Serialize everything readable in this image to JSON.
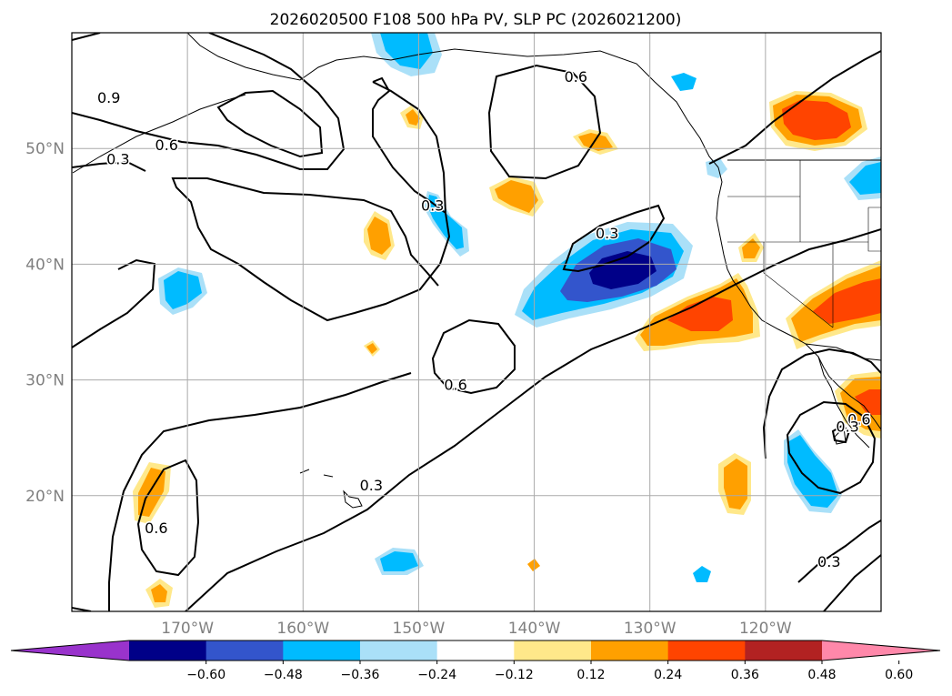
{
  "title": "2026020500 F108 500 hPa PV, SLP PC (2026021200)",
  "map": {
    "lon_range": [
      -180,
      -110
    ],
    "lat_range": [
      10,
      60
    ],
    "lon_ticks": [
      {
        "lon": -170,
        "label": "170°W"
      },
      {
        "lon": -160,
        "label": "160°W"
      },
      {
        "lon": -150,
        "label": "150°W"
      },
      {
        "lon": -140,
        "label": "140°W"
      },
      {
        "lon": -130,
        "label": "130°W"
      },
      {
        "lon": -120,
        "label": "120°W"
      }
    ],
    "lat_ticks": [
      {
        "lat": 20,
        "label": "20°N"
      },
      {
        "lat": 30,
        "label": "30°N"
      },
      {
        "lat": 40,
        "label": "40°N"
      },
      {
        "lat": 50,
        "label": "50°N"
      }
    ],
    "contour_labels": [
      {
        "text": "0.9",
        "lon": -176.8,
        "lat": 54.3
      },
      {
        "text": "0.6",
        "lon": -171.8,
        "lat": 50.2
      },
      {
        "text": "0.3",
        "lon": -176.0,
        "lat": 49.0
      },
      {
        "text": "0.6",
        "lon": -136.4,
        "lat": 56.1
      },
      {
        "text": "0.3",
        "lon": -148.8,
        "lat": 45.0
      },
      {
        "text": "0.3",
        "lon": -133.7,
        "lat": 42.6
      },
      {
        "text": "0.6",
        "lon": -146.8,
        "lat": 29.5
      },
      {
        "text": "0.3",
        "lon": -154.1,
        "lat": 20.8
      },
      {
        "text": "0.6",
        "lon": -172.7,
        "lat": 17.1
      },
      {
        "text": "0.6",
        "lon": -111.9,
        "lat": 26.5
      },
      {
        "text": "0.3",
        "lon": -112.9,
        "lat": 25.9
      },
      {
        "text": "0.3",
        "lon": -114.5,
        "lat": 14.2
      }
    ]
  },
  "colorbar": {
    "colors": [
      "#9933cc",
      "#000088",
      "#3355cc",
      "#00bbff",
      "#aae0f8",
      "#ffffff",
      "#ffe88a",
      "#ffa000",
      "#ff4400",
      "#b22222",
      "#ff88aa"
    ],
    "tick_labels": [
      "−0.60",
      "−0.48",
      "−0.36",
      "−0.24",
      "−0.12",
      "0.12",
      "0.24",
      "0.36",
      "0.48",
      "0.60"
    ]
  }
}
